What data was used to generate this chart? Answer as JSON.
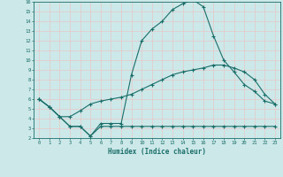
{
  "xlabel": "Humidex (Indice chaleur)",
  "background_color": "#cce8e8",
  "grid_color": "#e8c8c8",
  "line_color": "#1a6e6a",
  "xlim": [
    -0.5,
    23.5
  ],
  "ylim": [
    2,
    16
  ],
  "xticks": [
    0,
    1,
    2,
    3,
    4,
    5,
    6,
    7,
    8,
    9,
    10,
    11,
    12,
    13,
    14,
    15,
    16,
    17,
    18,
    19,
    20,
    21,
    22,
    23
  ],
  "yticks": [
    2,
    3,
    4,
    5,
    6,
    7,
    8,
    9,
    10,
    11,
    12,
    13,
    14,
    15,
    16
  ],
  "line1_x": [
    0,
    1,
    2,
    3,
    4,
    5,
    6,
    7,
    8,
    9,
    10,
    11,
    12,
    13,
    14,
    15,
    16,
    17,
    18,
    19,
    20,
    21,
    22,
    23
  ],
  "line1_y": [
    6.0,
    5.2,
    4.2,
    3.2,
    3.2,
    2.2,
    3.2,
    3.2,
    3.2,
    3.2,
    3.2,
    3.2,
    3.2,
    3.2,
    3.2,
    3.2,
    3.2,
    3.2,
    3.2,
    3.2,
    3.2,
    3.2,
    3.2,
    3.2
  ],
  "line2_x": [
    0,
    1,
    2,
    3,
    4,
    5,
    6,
    7,
    8,
    9,
    10,
    11,
    12,
    13,
    14,
    15,
    16,
    17,
    18,
    19,
    20,
    21,
    22,
    23
  ],
  "line2_y": [
    6.0,
    5.2,
    4.2,
    4.2,
    4.8,
    5.5,
    5.8,
    6.0,
    6.2,
    6.5,
    7.0,
    7.5,
    8.0,
    8.5,
    8.8,
    9.0,
    9.2,
    9.5,
    9.5,
    9.2,
    8.8,
    8.0,
    6.5,
    5.5
  ],
  "line3_x": [
    0,
    1,
    2,
    3,
    4,
    5,
    6,
    7,
    8,
    9,
    10,
    11,
    12,
    13,
    14,
    15,
    16,
    17,
    18,
    19,
    20,
    21,
    22,
    23
  ],
  "line3_y": [
    6.0,
    5.2,
    4.2,
    3.2,
    3.2,
    2.2,
    3.5,
    3.5,
    3.5,
    8.5,
    12.0,
    13.2,
    14.0,
    15.2,
    15.8,
    16.2,
    15.5,
    12.5,
    10.0,
    8.8,
    7.5,
    6.8,
    5.8,
    5.5
  ]
}
